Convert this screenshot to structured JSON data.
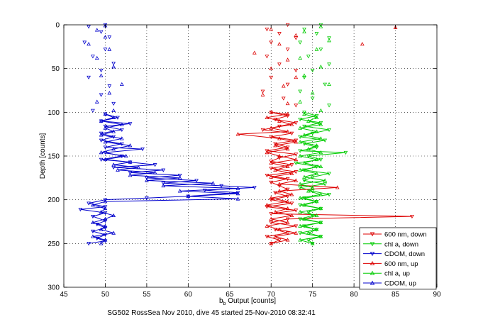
{
  "figure": {
    "caption": "SG502 RossSea Nov 2010, dive 45 started 25-Nov-2010 08:32:41"
  },
  "chart_data": {
    "type": "line",
    "xlabel_main": "b",
    "xlabel_sub": "b",
    "xlabel_rest": " Output [counts]",
    "ylabel": "Depth [counts]",
    "xlim": [
      45,
      90
    ],
    "ylim": [
      0,
      300
    ],
    "y_reversed": true,
    "grid": true,
    "grid_style": "dotted",
    "legend_position": "lower-right",
    "x_ticks": [
      45,
      50,
      55,
      60,
      65,
      70,
      75,
      80,
      85,
      90
    ],
    "y_ticks": [
      0,
      50,
      100,
      150,
      200,
      250,
      300
    ],
    "series": [
      {
        "name": "600 nm, down",
        "color": "#dd0000",
        "marker": "triangle-down",
        "points": [
          [
            72,
            0
          ],
          [
            69.5,
            5
          ],
          [
            71,
            10
          ],
          [
            73,
            15
          ],
          [
            70,
            20
          ],
          [
            72,
            28
          ],
          [
            69.5,
            36
          ],
          [
            71,
            45
          ],
          [
            73,
            52
          ],
          [
            70,
            60
          ],
          [
            72,
            68
          ],
          [
            69,
            76
          ],
          [
            71.5,
            84
          ],
          [
            73,
            92
          ],
          [
            70,
            100
          ],
          [
            72,
            104
          ],
          [
            70.5,
            108
          ],
          [
            73,
            112
          ],
          [
            71,
            116
          ],
          [
            69,
            120
          ],
          [
            72.5,
            124
          ],
          [
            70,
            128
          ],
          [
            73,
            132
          ],
          [
            70.5,
            136
          ],
          [
            72,
            140
          ],
          [
            69.5,
            144
          ],
          [
            73,
            148
          ],
          [
            71,
            152
          ],
          [
            70,
            156
          ],
          [
            72.5,
            160
          ],
          [
            70,
            164
          ],
          [
            73,
            168
          ],
          [
            69.5,
            172
          ],
          [
            72,
            176
          ],
          [
            70,
            180
          ],
          [
            71,
            184
          ],
          [
            72,
            188
          ],
          [
            70.5,
            192
          ],
          [
            72,
            196
          ],
          [
            70,
            200
          ],
          [
            72.5,
            204
          ],
          [
            69.5,
            208
          ],
          [
            73,
            212
          ],
          [
            70,
            216
          ],
          [
            87,
            219
          ],
          [
            72,
            222
          ],
          [
            70,
            226
          ],
          [
            73,
            230
          ],
          [
            70.5,
            234
          ],
          [
            72,
            238
          ],
          [
            69.5,
            242
          ],
          [
            71,
            246
          ],
          [
            70,
            250
          ]
        ]
      },
      {
        "name": "chl a, down",
        "color": "#00cc00",
        "marker": "triangle-down",
        "points": [
          [
            76,
            0
          ],
          [
            74,
            5
          ],
          [
            75.5,
            10
          ],
          [
            77,
            15
          ],
          [
            73.5,
            20
          ],
          [
            76,
            28
          ],
          [
            74.5,
            36
          ],
          [
            77,
            45
          ],
          [
            75,
            52
          ],
          [
            74,
            60
          ],
          [
            76.5,
            68
          ],
          [
            73.5,
            76
          ],
          [
            75,
            84
          ],
          [
            77,
            92
          ],
          [
            74,
            100
          ],
          [
            75.5,
            104
          ],
          [
            73.5,
            108
          ],
          [
            76,
            112
          ],
          [
            74,
            116
          ],
          [
            77,
            120
          ],
          [
            75,
            124
          ],
          [
            73.5,
            128
          ],
          [
            76.5,
            132
          ],
          [
            74,
            136
          ],
          [
            75.5,
            140
          ],
          [
            73.5,
            144
          ],
          [
            79,
            146
          ],
          [
            74.5,
            150
          ],
          [
            76,
            154
          ],
          [
            73,
            158
          ],
          [
            75.5,
            162
          ],
          [
            74,
            166
          ],
          [
            77,
            170
          ],
          [
            75,
            174
          ],
          [
            74,
            178
          ],
          [
            76.5,
            182
          ],
          [
            73.5,
            186
          ],
          [
            75,
            190
          ],
          [
            77,
            194
          ],
          [
            74,
            198
          ],
          [
            75.5,
            202
          ],
          [
            73.5,
            206
          ],
          [
            76,
            210
          ],
          [
            74.5,
            214
          ],
          [
            75,
            218
          ],
          [
            73.5,
            222
          ],
          [
            76,
            226
          ],
          [
            74,
            230
          ],
          [
            75.5,
            234
          ],
          [
            73.5,
            238
          ],
          [
            76,
            242
          ],
          [
            74.5,
            246
          ],
          [
            75,
            250
          ]
        ]
      },
      {
        "name": "CDOM, down",
        "color": "#0000cc",
        "marker": "triangle-down",
        "points": [
          [
            50,
            0
          ],
          [
            48,
            2
          ],
          [
            49.5,
            8
          ],
          [
            50.5,
            14
          ],
          [
            47.5,
            20
          ],
          [
            50,
            28
          ],
          [
            48.5,
            36
          ],
          [
            51,
            44
          ],
          [
            49.5,
            52
          ],
          [
            48,
            60
          ],
          [
            50.5,
            70
          ],
          [
            49.5,
            80
          ],
          [
            51,
            90
          ],
          [
            48.5,
            98
          ],
          [
            50,
            102
          ],
          [
            51.5,
            106
          ],
          [
            49.5,
            110
          ],
          [
            53,
            113
          ],
          [
            50,
            116
          ],
          [
            52,
            120
          ],
          [
            49.5,
            124
          ],
          [
            51,
            128
          ],
          [
            49.5,
            132
          ],
          [
            52,
            136
          ],
          [
            50,
            140
          ],
          [
            54.5,
            142
          ],
          [
            50,
            146
          ],
          [
            52,
            150
          ],
          [
            49.5,
            154
          ],
          [
            53,
            157
          ],
          [
            56,
            160
          ],
          [
            51,
            163
          ],
          [
            57,
            166
          ],
          [
            53,
            169
          ],
          [
            59,
            172
          ],
          [
            55,
            175
          ],
          [
            61,
            178
          ],
          [
            57,
            181
          ],
          [
            64,
            184
          ],
          [
            68,
            186
          ],
          [
            62,
            189
          ],
          [
            66,
            192
          ],
          [
            60,
            196
          ],
          [
            55,
            198
          ],
          [
            50,
            200
          ],
          [
            48,
            204
          ],
          [
            50,
            208
          ],
          [
            47,
            211
          ],
          [
            50,
            215
          ],
          [
            48.5,
            219
          ],
          [
            50,
            224
          ],
          [
            49,
            228
          ],
          [
            50,
            232
          ],
          [
            48.5,
            236
          ],
          [
            50,
            240
          ],
          [
            49,
            244
          ],
          [
            50,
            247
          ],
          [
            48,
            250
          ]
        ]
      },
      {
        "name": "600 nm, up",
        "color": "#dd0000",
        "marker": "triangle-up",
        "points": [
          [
            70,
            250
          ],
          [
            72,
            246
          ],
          [
            70.5,
            242
          ],
          [
            73,
            238
          ],
          [
            71,
            234
          ],
          [
            69.5,
            230
          ],
          [
            72,
            226
          ],
          [
            70,
            222
          ],
          [
            72.5,
            218
          ],
          [
            70.5,
            214
          ],
          [
            72,
            210
          ],
          [
            69.5,
            206
          ],
          [
            72,
            202
          ],
          [
            70,
            198
          ],
          [
            72.5,
            194
          ],
          [
            71,
            190
          ],
          [
            78,
            186
          ],
          [
            71,
            182
          ],
          [
            73,
            178
          ],
          [
            70,
            174
          ],
          [
            72.5,
            170
          ],
          [
            70.5,
            166
          ],
          [
            72,
            162
          ],
          [
            70,
            158
          ],
          [
            73,
            154
          ],
          [
            71,
            150
          ],
          [
            69.5,
            146
          ],
          [
            72,
            142
          ],
          [
            70.5,
            138
          ],
          [
            73,
            134
          ],
          [
            71,
            130
          ],
          [
            66,
            125
          ],
          [
            72,
            122
          ],
          [
            70,
            118
          ],
          [
            72.5,
            114
          ],
          [
            71,
            110
          ],
          [
            69.5,
            106
          ],
          [
            72,
            102
          ],
          [
            70,
            100
          ],
          [
            72,
            90
          ],
          [
            69,
            80
          ],
          [
            71.5,
            70
          ],
          [
            73,
            60
          ],
          [
            70,
            50
          ],
          [
            72,
            40
          ],
          [
            68,
            32
          ],
          [
            71,
            22
          ],
          [
            73,
            12
          ],
          [
            70,
            5
          ],
          [
            85,
            3
          ],
          [
            81,
            22
          ]
        ]
      },
      {
        "name": "chl a, up",
        "color": "#00cc00",
        "marker": "triangle-up",
        "points": [
          [
            75,
            250
          ],
          [
            73.5,
            246
          ],
          [
            76,
            242
          ],
          [
            74.5,
            238
          ],
          [
            75.5,
            234
          ],
          [
            73.5,
            230
          ],
          [
            76,
            226
          ],
          [
            74,
            222
          ],
          [
            75.5,
            218
          ],
          [
            73.5,
            214
          ],
          [
            76,
            210
          ],
          [
            74,
            206
          ],
          [
            75.5,
            202
          ],
          [
            73.5,
            198
          ],
          [
            76,
            194
          ],
          [
            74.5,
            190
          ],
          [
            75,
            186
          ],
          [
            73.5,
            182
          ],
          [
            76.5,
            178
          ],
          [
            74,
            174
          ],
          [
            75.5,
            170
          ],
          [
            73.5,
            166
          ],
          [
            76,
            162
          ],
          [
            74,
            158
          ],
          [
            75.5,
            154
          ],
          [
            73.5,
            150
          ],
          [
            76,
            146
          ],
          [
            74.5,
            142
          ],
          [
            75.5,
            138
          ],
          [
            73.5,
            134
          ],
          [
            76,
            130
          ],
          [
            74,
            126
          ],
          [
            75.5,
            122
          ],
          [
            73.5,
            118
          ],
          [
            76,
            114
          ],
          [
            74.5,
            110
          ],
          [
            75.5,
            106
          ],
          [
            74,
            102
          ],
          [
            76,
            98
          ],
          [
            73.5,
            88
          ],
          [
            75,
            78
          ],
          [
            77,
            68
          ],
          [
            74,
            58
          ],
          [
            76,
            48
          ],
          [
            73.5,
            38
          ],
          [
            75.5,
            28
          ],
          [
            77,
            18
          ],
          [
            74,
            8
          ],
          [
            76,
            2
          ]
        ]
      },
      {
        "name": "CDOM, up",
        "color": "#0000cc",
        "marker": "triangle-up",
        "points": [
          [
            49.5,
            250
          ],
          [
            50,
            246
          ],
          [
            48.5,
            242
          ],
          [
            51,
            238
          ],
          [
            49.5,
            234
          ],
          [
            50,
            230
          ],
          [
            48.5,
            226
          ],
          [
            50,
            222
          ],
          [
            51,
            218
          ],
          [
            49.5,
            214
          ],
          [
            50,
            210
          ],
          [
            48.5,
            206
          ],
          [
            50,
            202
          ],
          [
            66,
            199
          ],
          [
            60,
            196
          ],
          [
            66,
            193
          ],
          [
            59,
            190
          ],
          [
            66,
            187
          ],
          [
            57,
            184
          ],
          [
            63,
            181
          ],
          [
            55,
            178
          ],
          [
            59,
            175
          ],
          [
            53,
            172
          ],
          [
            56,
            169
          ],
          [
            51.5,
            166
          ],
          [
            54,
            163
          ],
          [
            51,
            160
          ],
          [
            53,
            157
          ],
          [
            50,
            154
          ],
          [
            52.5,
            150
          ],
          [
            49.5,
            146
          ],
          [
            51,
            142
          ],
          [
            53,
            138
          ],
          [
            50,
            134
          ],
          [
            52,
            130
          ],
          [
            49.5,
            126
          ],
          [
            51,
            122
          ],
          [
            50,
            118
          ],
          [
            52,
            114
          ],
          [
            49.5,
            110
          ],
          [
            51,
            106
          ],
          [
            50,
            102
          ],
          [
            51,
            98
          ],
          [
            49,
            88
          ],
          [
            50.5,
            78
          ],
          [
            52,
            68
          ],
          [
            49.5,
            58
          ],
          [
            51,
            48
          ],
          [
            49,
            38
          ],
          [
            50.5,
            28
          ],
          [
            48,
            22
          ],
          [
            50,
            14
          ],
          [
            49,
            6
          ],
          [
            50,
            1
          ]
        ]
      }
    ]
  }
}
